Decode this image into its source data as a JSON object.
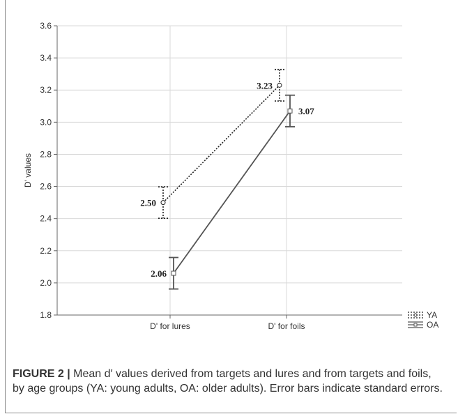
{
  "chart_data": {
    "type": "line",
    "ylabel": "D' values",
    "xlabel": "",
    "categories": [
      "D' for lures",
      "D' for foils"
    ],
    "ylim": [
      1.8,
      3.6
    ],
    "yticks": [
      "1.8",
      "2.0",
      "2.2",
      "2.4",
      "2.6",
      "2.8",
      "3.0",
      "3.2",
      "3.4",
      "3.6"
    ],
    "grid": true,
    "legend_position": "right-bottom",
    "series": [
      {
        "name": "YA",
        "values": [
          2.5,
          3.23
        ],
        "labels": [
          "2.50",
          "3.23"
        ],
        "error": [
          0.098,
          0.098
        ],
        "style": "dotted",
        "marker": "circle",
        "color": "#222222"
      },
      {
        "name": "OA",
        "values": [
          2.06,
          3.07
        ],
        "labels": [
          "2.06",
          "3.07"
        ],
        "error": [
          0.098,
          0.098
        ],
        "style": "solid",
        "marker": "square",
        "color": "#555555"
      }
    ]
  },
  "caption": {
    "label": "FIGURE 2 |",
    "text": " Mean d′ values derived from targets and lures and from targets and foils, by age groups (YA: young adults, OA: older adults). Error bars indicate standard errors."
  }
}
